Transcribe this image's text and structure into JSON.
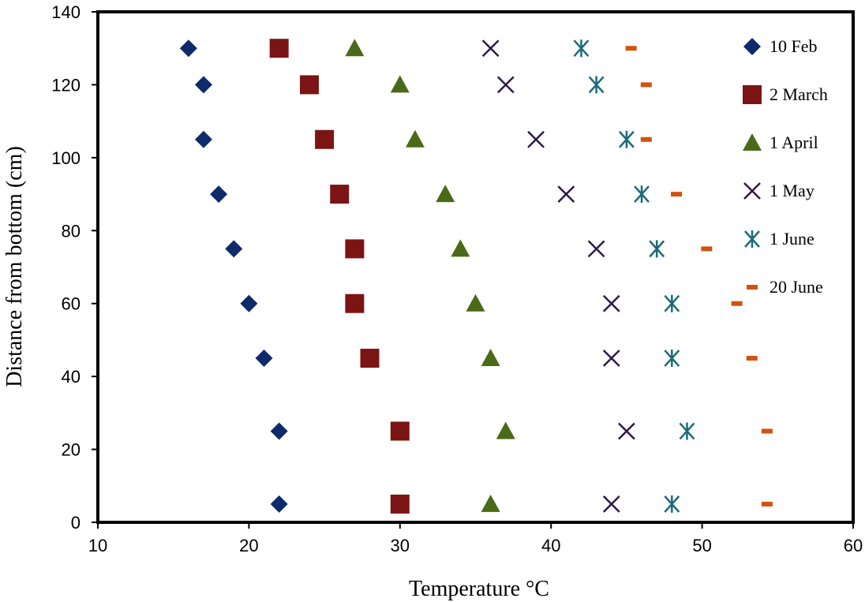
{
  "chart_data": {
    "type": "scatter",
    "title": "",
    "xlabel": "Temperature °C",
    "ylabel": "Distance from bottom (cm)",
    "xlim": [
      10,
      60
    ],
    "ylim": [
      0,
      140
    ],
    "xticks": [
      10,
      20,
      30,
      40,
      50,
      60
    ],
    "yticks": [
      0,
      20,
      40,
      60,
      80,
      100,
      120,
      140
    ],
    "grid": false,
    "legend_position": "right, inside",
    "series": [
      {
        "name": "10 Feb",
        "marker": "diamond",
        "color": "#0e2a6b",
        "x": [
          16,
          17,
          17,
          18,
          19,
          20,
          21,
          22,
          22
        ],
        "y": [
          130,
          120,
          105,
          90,
          75,
          60,
          45,
          25,
          5
        ]
      },
      {
        "name": "2 March",
        "marker": "square",
        "color": "#7b1414",
        "x": [
          22,
          24,
          25,
          26,
          27,
          27,
          28,
          30,
          30
        ],
        "y": [
          130,
          120,
          105,
          90,
          75,
          60,
          45,
          25,
          5
        ]
      },
      {
        "name": "1 April",
        "marker": "triangle",
        "color": "#4b6a18",
        "x": [
          27,
          30,
          31,
          33,
          34,
          35,
          36,
          37,
          36
        ],
        "y": [
          130,
          120,
          105,
          90,
          75,
          60,
          45,
          25,
          5
        ]
      },
      {
        "name": "1 May",
        "marker": "x",
        "color": "#2e1a4a",
        "x": [
          36,
          37,
          39,
          41,
          43,
          44,
          44,
          45,
          44
        ],
        "y": [
          130,
          120,
          105,
          90,
          75,
          60,
          45,
          25,
          5
        ]
      },
      {
        "name": "1 June",
        "marker": "asterisk",
        "color": "#1b6a78",
        "x": [
          42,
          43,
          45,
          46,
          47,
          48,
          48,
          49,
          48
        ],
        "y": [
          130,
          120,
          105,
          90,
          75,
          60,
          45,
          25,
          5
        ]
      },
      {
        "name": "20 June",
        "marker": "dash",
        "color": "#d2520f",
        "x": [
          45.3,
          46.3,
          46.3,
          48.3,
          50.3,
          52.3,
          53.3,
          54.3,
          54.3
        ],
        "y": [
          130,
          120,
          105,
          90,
          75,
          60,
          45,
          25,
          5
        ]
      }
    ]
  }
}
